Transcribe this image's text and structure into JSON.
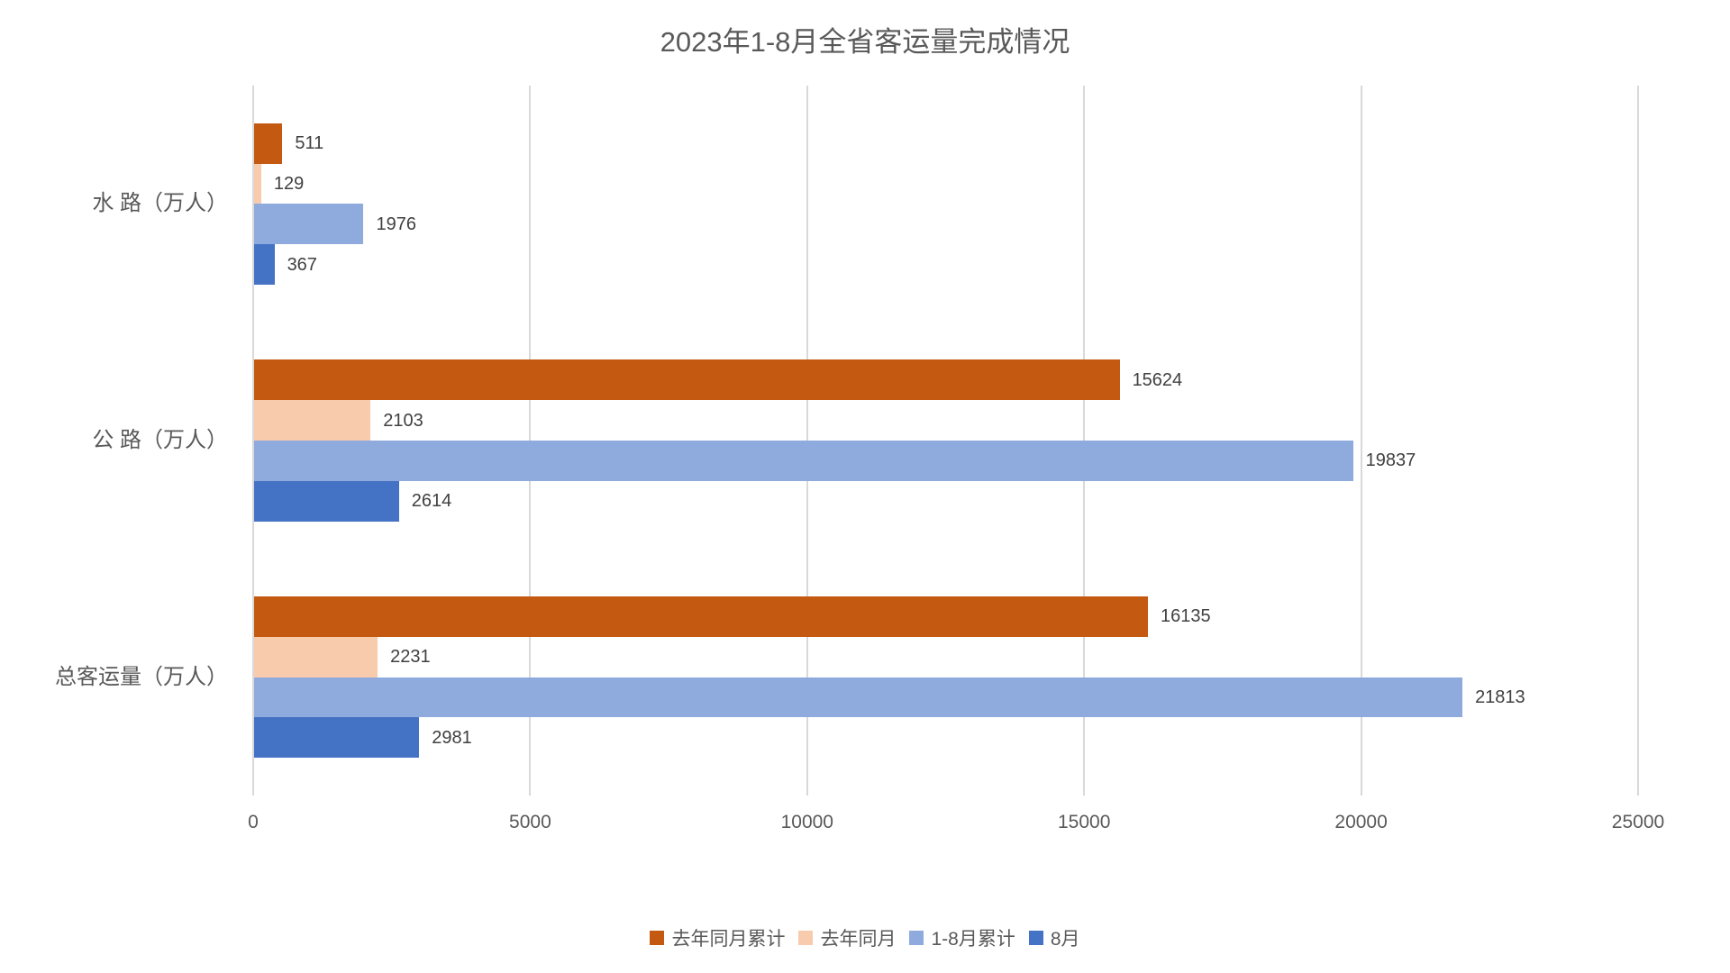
{
  "title": "2023年1-8月全省客运量完成情况",
  "colors": {
    "background": "#FFFFFF",
    "title_text": "#595959",
    "axis_text": "#595959",
    "data_label_text": "#404040",
    "gridline": "#D9D9D9"
  },
  "chart_data": {
    "type": "bar",
    "orientation": "horizontal",
    "title": "2023年1-8月全省客运量完成情况",
    "categories": [
      "水 路（万人）",
      "公 路（万人）",
      "总客运量（万人）"
    ],
    "series": [
      {
        "name": "去年同月累计",
        "color": "#C45911",
        "values": [
          511,
          15624,
          16135
        ]
      },
      {
        "name": "去年同月",
        "color": "#F8CBAD",
        "values": [
          129,
          2103,
          2231
        ]
      },
      {
        "name": "1-8月累计",
        "color": "#8FAADC",
        "values": [
          1976,
          19837,
          21813
        ]
      },
      {
        "name": "8月",
        "color": "#4472C4",
        "values": [
          367,
          2614,
          2981
        ]
      }
    ],
    "xlim": [
      0,
      25000
    ],
    "x_ticks": [
      0,
      5000,
      10000,
      15000,
      20000,
      25000
    ],
    "grid": true,
    "legend_position": "bottom",
    "data_labels": true
  }
}
